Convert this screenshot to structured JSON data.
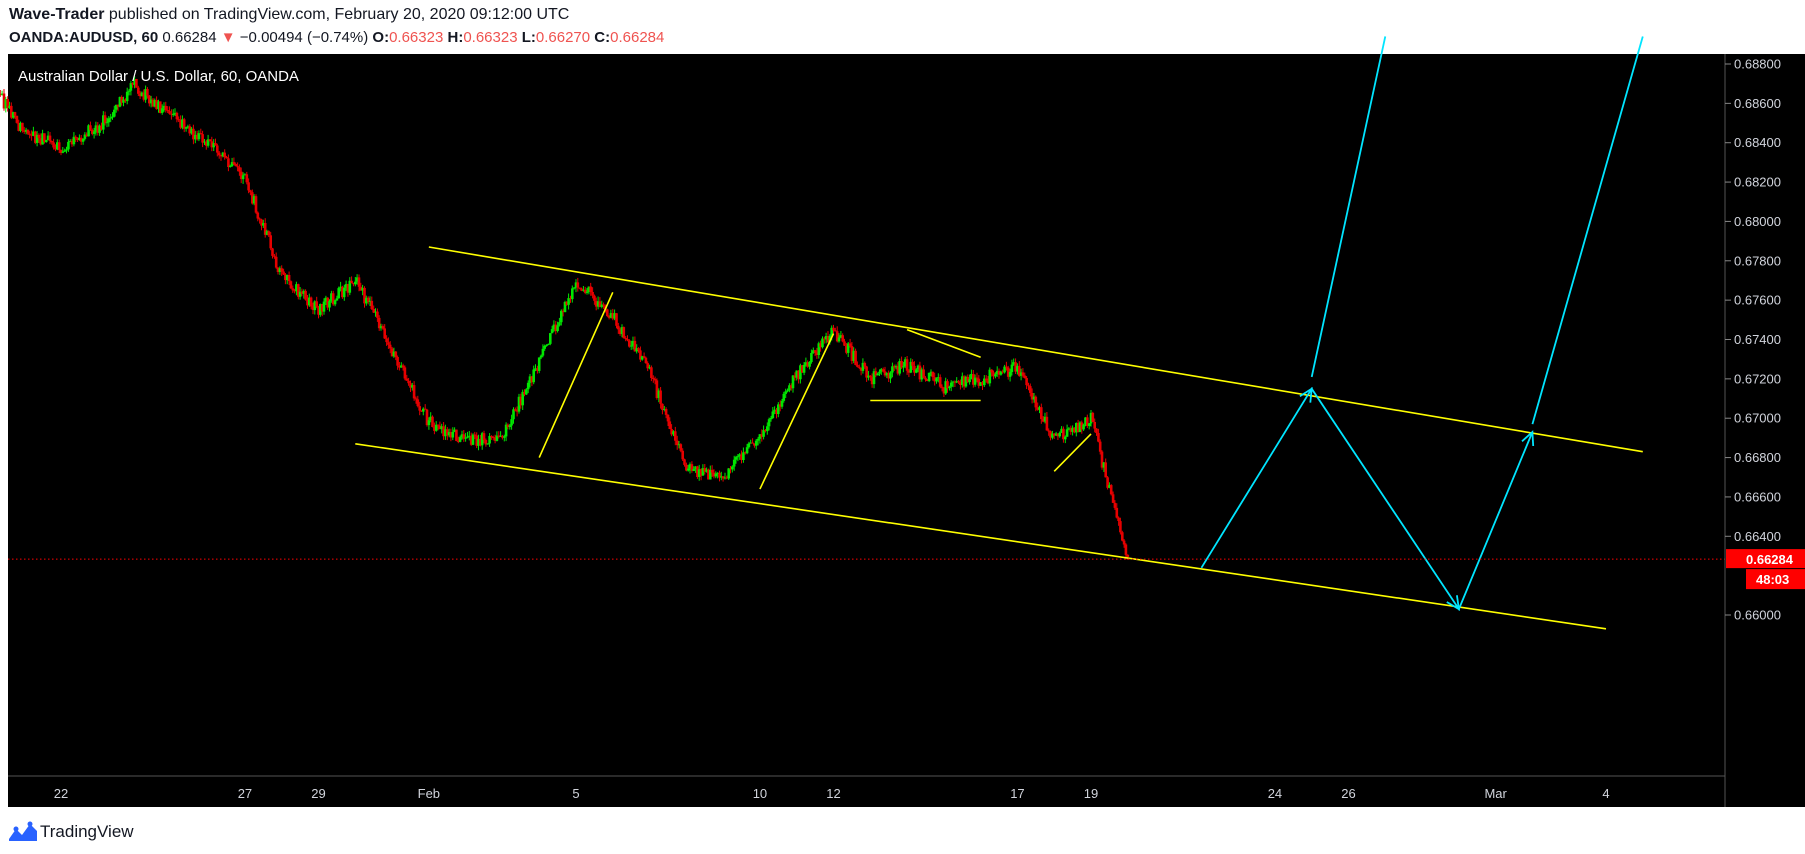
{
  "header": {
    "publisher": "Wave-Trader",
    "published_text": " published on TradingView.com, February 20, 2020 09:12:00 UTC",
    "symbol": "OANDA:AUDUSD, 60",
    "last": "0.66284",
    "change": "−0.00494 (−0.74%)",
    "o_label": "O:",
    "o_value": "0.66323",
    "h_label": "H:",
    "h_value": "0.66323",
    "l_label": "L:",
    "l_value": "0.66270",
    "c_label": "C:",
    "c_value": "0.66284"
  },
  "footer": {
    "brand": "TradingView"
  },
  "colors": {
    "background": "#000000",
    "up": "#00e600",
    "down": "#e60000",
    "channel": "#ffff00",
    "projection": "#00e5ff",
    "price_line": "#ff0000"
  },
  "chart_data": {
    "type": "candlestick",
    "title": "Australian Dollar / U.S. Dollar, 60, OANDA",
    "x_tick_labels": [
      "22",
      "27",
      "29",
      "Feb",
      "5",
      "10",
      "12",
      "17",
      "19",
      "24",
      "26",
      "Mar",
      "4"
    ],
    "y_tick_labels": [
      "0.68800",
      "0.68600",
      "0.68400",
      "0.68200",
      "0.68000",
      "0.67800",
      "0.67600",
      "0.67400",
      "0.67200",
      "0.67000",
      "0.66800",
      "0.66600",
      "0.66400",
      "0.66000"
    ],
    "ylim": [
      0.6594,
      0.6894
    ],
    "current_price_label": "0.66284",
    "countdown_label": "48:03",
    "price_path": [
      [
        "Jan 20",
        0.6873
      ],
      [
        "Jan 21",
        0.6845
      ],
      [
        "Jan 22",
        0.6838
      ],
      [
        "Jan 23",
        0.6848
      ],
      [
        "Jan 24",
        0.6869
      ],
      [
        "Jan 25",
        0.6852
      ],
      [
        "Jan 26",
        0.684
      ],
      [
        "Jan 27",
        0.6822
      ],
      [
        "Jan 28",
        0.6772
      ],
      [
        "Jan 29",
        0.6755
      ],
      [
        "Jan 30",
        0.677
      ],
      [
        "Jan 31",
        0.6734
      ],
      [
        "Feb 1",
        0.6698
      ],
      [
        "Feb 2",
        0.6688
      ],
      [
        "Feb 3",
        0.6691
      ],
      [
        "Feb 4",
        0.6728
      ],
      [
        "Feb 5",
        0.677
      ],
      [
        "Feb 6",
        0.6752
      ],
      [
        "Feb 7",
        0.6723
      ],
      [
        "Feb 8",
        0.6675
      ],
      [
        "Feb 9",
        0.667
      ],
      [
        "Feb 10",
        0.669
      ],
      [
        "Feb 11",
        0.6722
      ],
      [
        "Feb 12",
        0.6745
      ],
      [
        "Feb 13",
        0.672
      ],
      [
        "Feb 14",
        0.6727
      ],
      [
        "Feb 15",
        0.6716
      ],
      [
        "Feb 16",
        0.672
      ],
      [
        "Feb 17",
        0.6726
      ],
      [
        "Feb 18",
        0.669
      ],
      [
        "Feb 19",
        0.67
      ],
      [
        "Feb 20",
        0.6628
      ]
    ],
    "channel_lines": [
      {
        "name": "upper",
        "from": [
          "Feb 1",
          0.6787
        ],
        "to": [
          "Mar 5",
          0.6683
        ]
      },
      {
        "name": "lower",
        "from": [
          "Jan 30",
          0.6687
        ],
        "to": [
          "Mar 4",
          0.6593
        ]
      }
    ],
    "pattern_lines": [
      {
        "from": [
          "Feb 4",
          0.668
        ],
        "to": [
          "Feb 6",
          0.6764
        ]
      },
      {
        "from": [
          "Feb 10",
          0.6664
        ],
        "to": [
          "Feb 12",
          0.6743
        ]
      },
      {
        "from": [
          "Feb 14",
          0.6745
        ],
        "to": [
          "Feb 16",
          0.6731
        ]
      },
      {
        "from": [
          "Feb 13",
          0.6709
        ],
        "to": [
          "Feb 16",
          0.6709
        ]
      },
      {
        "from": [
          "Feb 18",
          0.6673
        ],
        "to": [
          "Feb 19",
          0.6692
        ]
      }
    ],
    "projection_path": [
      [
        "Feb 22",
        0.6624
      ],
      [
        "Feb 25",
        0.6715
      ],
      [
        "Feb 29",
        0.6603
      ],
      [
        "Mar 2",
        0.6693
      ]
    ],
    "projection_lines": [
      {
        "from": [
          "Feb 25",
          0.6721
        ],
        "to": [
          "Feb 27",
          0.6894
        ]
      },
      {
        "from": [
          "Mar 2",
          0.6697
        ],
        "to": [
          "Mar 5",
          0.6894
        ]
      }
    ]
  }
}
